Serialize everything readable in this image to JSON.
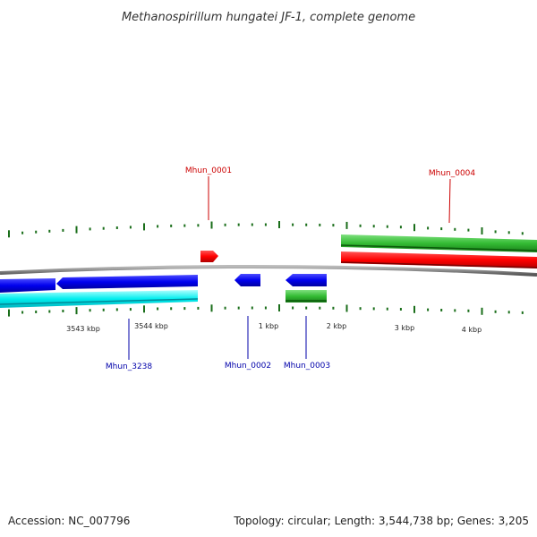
{
  "title": "Methanospirillum hungatei JF-1, complete genome",
  "footer": {
    "accession": "Accession: NC_007796",
    "summary": "Topology: circular; Length: 3,544,738 bp; Genes: 3,205"
  },
  "scale": {
    "labels": [
      "3543 kbp",
      "3544 kbp",
      "1 kbp",
      "2 kbp",
      "3 kbp",
      "4 kbp"
    ]
  },
  "genes": [
    {
      "id": "Mhun_0001",
      "strand": "forward",
      "color": "#ff0000"
    },
    {
      "id": "Mhun_0004",
      "strand": "forward",
      "color": "#ff0000"
    },
    {
      "id": "Mhun_3238",
      "strand": "reverse",
      "color": "#0000ff"
    },
    {
      "id": "Mhun_0002",
      "strand": "reverse",
      "color": "#0000ff"
    },
    {
      "id": "Mhun_0003",
      "strand": "reverse",
      "color": "#0000ff"
    }
  ],
  "tracks": {
    "forward_gene_color": "#ff0000",
    "reverse_gene_color": "#0000ff",
    "forward_cds_color": "#22bb22",
    "reverse_cds_color": "#00e5ee",
    "backbone_color": "#888888",
    "tick_color": "#1a6e1a"
  }
}
